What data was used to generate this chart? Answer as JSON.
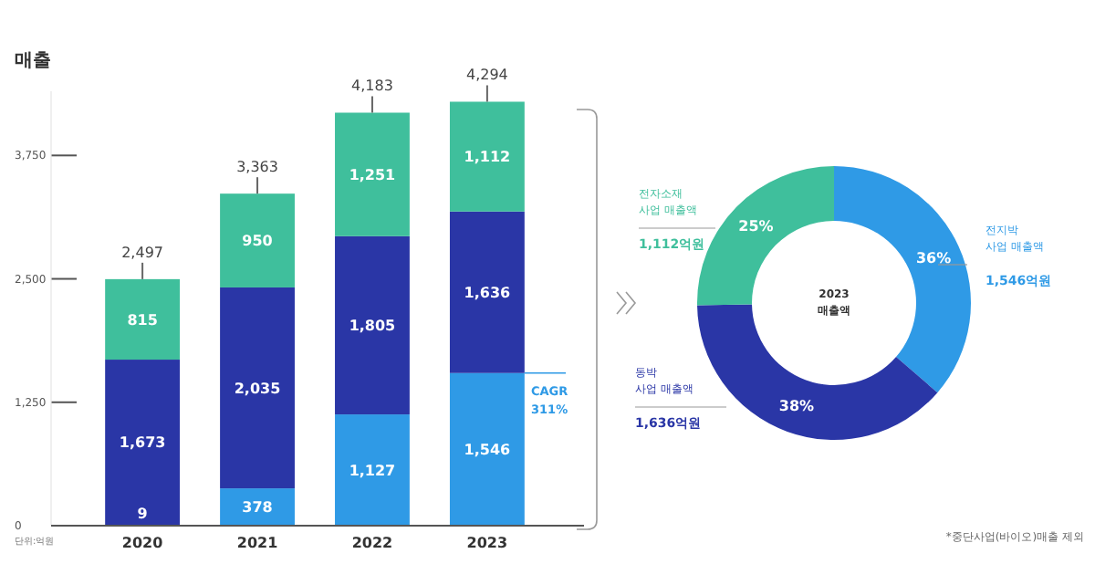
{
  "chart_data": [
    {
      "type": "bar",
      "title": "매출",
      "stacked": true,
      "categories": [
        "2020",
        "2021",
        "2022",
        "2023"
      ],
      "series": [
        {
          "color": "#2f9ae6",
          "values": [
            9,
            378,
            1127,
            1546
          ],
          "value_labels": [
            "9",
            "378",
            "1,127",
            "1,546"
          ]
        },
        {
          "color": "#2a36a6",
          "values": [
            1673,
            2035,
            1805,
            1636
          ],
          "value_labels": [
            "1,673",
            "2,035",
            "1,805",
            "1,636"
          ]
        },
        {
          "color": "#3fbf9c",
          "values": [
            815,
            950,
            1251,
            1112
          ],
          "value_labels": [
            "815",
            "950",
            "1,251",
            "1,112"
          ]
        }
      ],
      "ylim": [
        0,
        4400
      ],
      "yticks": [
        0,
        {
          "value": 1250,
          "label": "1,250"
        },
        {
          "value": 2500,
          "label": "2,500"
        },
        {
          "value": 3750,
          "label": "3,750"
        }
      ],
      "totals": [
        "2,497",
        "3,363",
        "4,183",
        "4,294"
      ],
      "annotations": [
        "단위:억원",
        "CAGR 311%"
      ]
    },
    {
      "type": "donut",
      "title": "2023 매출액",
      "categories": [
        "전지박 사업 매출액",
        "동박 사업 매출액",
        "전자소재 사업 매출액"
      ],
      "values": [
        36,
        38,
        25
      ],
      "colors": [
        "#2f9ae6",
        "#2a36a6",
        "#3fbf9c"
      ],
      "value_labels": [
        "36%",
        "38%",
        "25%"
      ],
      "annotations": [
        "1,546억원",
        "1,636억원",
        "1,112억원",
        "*중단사업(바이오)매출 제외"
      ]
    }
  ]
}
